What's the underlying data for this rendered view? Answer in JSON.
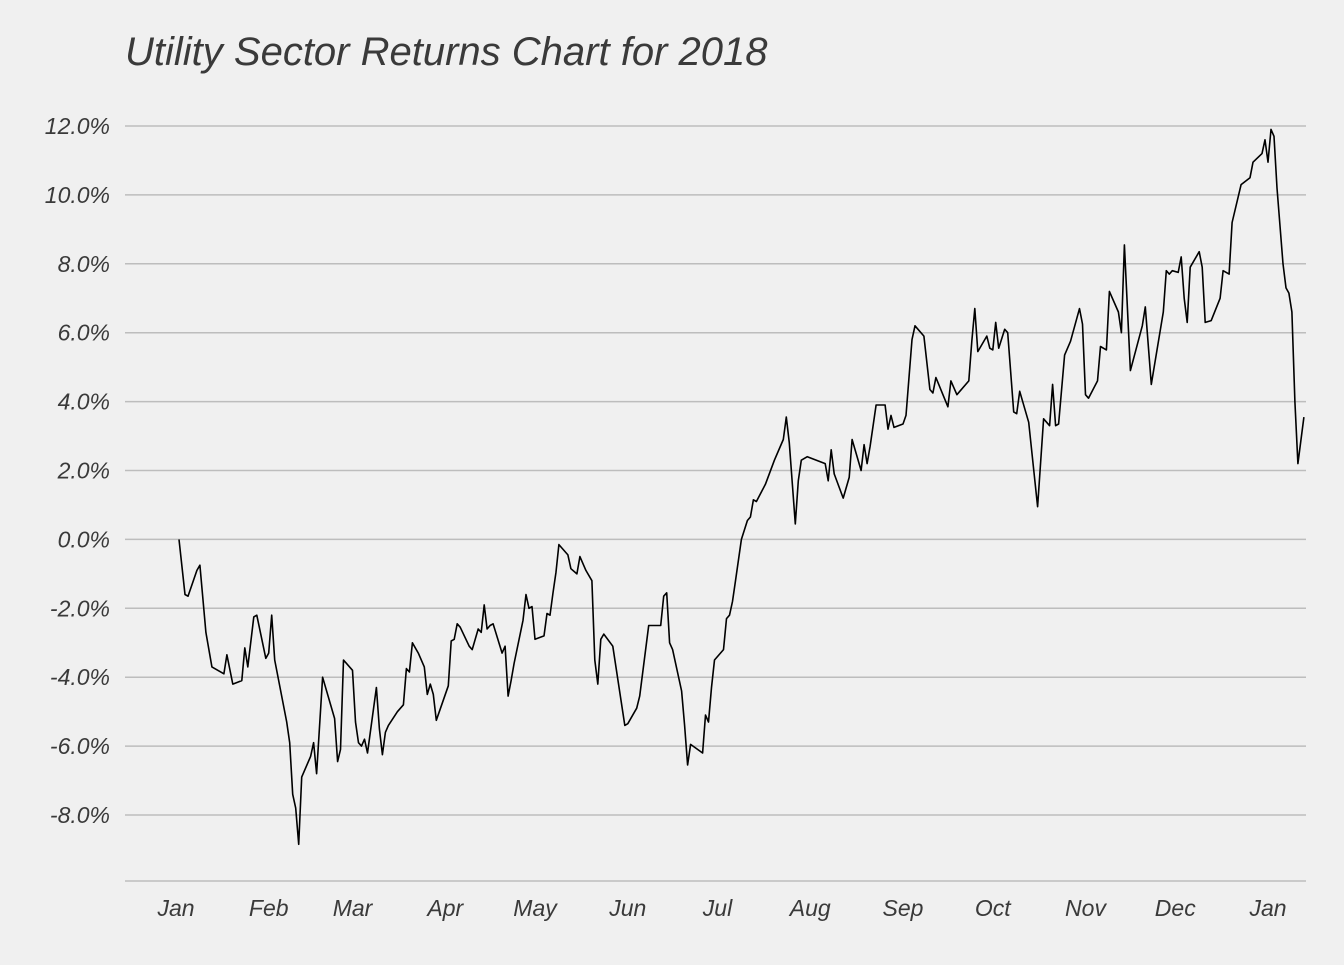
{
  "chart_data": {
    "type": "line",
    "title": "Utility Sector Returns Chart for 2018",
    "xlabel": "",
    "ylabel": "",
    "ylim": [
      -10.0,
      12.5
    ],
    "yticks": [
      -8.0,
      -6.0,
      -4.0,
      -2.0,
      0.0,
      2.0,
      4.0,
      6.0,
      8.0,
      10.0,
      12.0
    ],
    "ytick_labels": [
      "-8.0%",
      "-6.0%",
      "-4.0%",
      "-2.0%",
      "0.0%",
      "2.0%",
      "4.0%",
      "6.0%",
      "8.0%",
      "10.0%",
      "12.0%"
    ],
    "xlim": [
      "2017-12-23",
      "2019-01-09"
    ],
    "xticks": [
      "2018-01-01",
      "2018-02-01",
      "2018-03-01",
      "2018-04-01",
      "2018-05-01",
      "2018-06-01",
      "2018-07-01",
      "2018-08-01",
      "2018-09-01",
      "2018-10-01",
      "2018-11-01",
      "2018-12-01",
      "2019-01-01"
    ],
    "xtick_labels": [
      "Jan",
      "Feb",
      "Mar",
      "Apr",
      "May",
      "Jun",
      "Jul",
      "Aug",
      "Sep",
      "Oct",
      "Nov",
      "Dec",
      "Jan"
    ],
    "grid": "horizontal",
    "line_color": "#000000",
    "grid_color": "#bdbdbd",
    "series": [
      {
        "points": [
          [
            "2018-01-02",
            0.0
          ],
          [
            "2018-01-04",
            -1.6
          ],
          [
            "2018-01-05",
            -1.65
          ],
          [
            "2018-01-08",
            -0.9
          ],
          [
            "2018-01-09",
            -0.75
          ],
          [
            "2018-01-11",
            -2.7
          ],
          [
            "2018-01-13",
            -3.7
          ],
          [
            "2018-01-17",
            -3.9
          ],
          [
            "2018-01-18",
            -3.35
          ],
          [
            "2018-01-20",
            -4.2
          ],
          [
            "2018-01-23",
            -4.1
          ],
          [
            "2018-01-24",
            -3.15
          ],
          [
            "2018-01-25",
            -3.7
          ],
          [
            "2018-01-27",
            -2.25
          ],
          [
            "2018-01-28",
            -2.2
          ],
          [
            "2018-01-31",
            -3.45
          ],
          [
            "2018-02-01",
            -3.3
          ],
          [
            "2018-02-02",
            -2.2
          ],
          [
            "2018-02-03",
            -3.5
          ],
          [
            "2018-02-07",
            -5.3
          ],
          [
            "2018-02-08",
            -5.9
          ],
          [
            "2018-02-09",
            -7.4
          ],
          [
            "2018-02-10",
            -7.8
          ],
          [
            "2018-02-11",
            -8.85
          ],
          [
            "2018-02-12",
            -6.9
          ],
          [
            "2018-02-15",
            -6.3
          ],
          [
            "2018-02-16",
            -5.9
          ],
          [
            "2018-02-17",
            -6.8
          ],
          [
            "2018-02-19",
            -4.0
          ],
          [
            "2018-02-23",
            -5.2
          ],
          [
            "2018-02-24",
            -6.45
          ],
          [
            "2018-02-25",
            -6.1
          ],
          [
            "2018-02-26",
            -3.5
          ],
          [
            "2018-03-01",
            -3.8
          ],
          [
            "2018-03-02",
            -5.3
          ],
          [
            "2018-03-03",
            -5.9
          ],
          [
            "2018-03-04",
            -6.0
          ],
          [
            "2018-03-05",
            -5.8
          ],
          [
            "2018-03-06",
            -6.2
          ],
          [
            "2018-03-09",
            -4.3
          ],
          [
            "2018-03-10",
            -5.5
          ],
          [
            "2018-03-11",
            -6.25
          ],
          [
            "2018-03-12",
            -5.6
          ],
          [
            "2018-03-13",
            -5.4
          ],
          [
            "2018-03-16",
            -5.0
          ],
          [
            "2018-03-18",
            -4.8
          ],
          [
            "2018-03-19",
            -3.75
          ],
          [
            "2018-03-20",
            -3.85
          ],
          [
            "2018-03-21",
            -3.0
          ],
          [
            "2018-03-23",
            -3.3
          ],
          [
            "2018-03-25",
            -3.7
          ],
          [
            "2018-03-26",
            -4.5
          ],
          [
            "2018-03-27",
            -4.2
          ],
          [
            "2018-03-28",
            -4.5
          ],
          [
            "2018-03-29",
            -5.25
          ],
          [
            "2018-03-30",
            -5.0
          ],
          [
            "2018-04-02",
            -4.25
          ],
          [
            "2018-04-03",
            -2.95
          ],
          [
            "2018-04-04",
            -2.9
          ],
          [
            "2018-04-05",
            -2.45
          ],
          [
            "2018-04-06",
            -2.55
          ],
          [
            "2018-04-09",
            -3.1
          ],
          [
            "2018-04-10",
            -3.2
          ],
          [
            "2018-04-12",
            -2.6
          ],
          [
            "2018-04-13",
            -2.7
          ],
          [
            "2018-04-14",
            -1.9
          ],
          [
            "2018-04-15",
            -2.6
          ],
          [
            "2018-04-16",
            -2.5
          ],
          [
            "2018-04-17",
            -2.45
          ],
          [
            "2018-04-20",
            -3.3
          ],
          [
            "2018-04-21",
            -3.1
          ],
          [
            "2018-04-22",
            -4.55
          ],
          [
            "2018-04-23",
            -4.1
          ],
          [
            "2018-04-24",
            -3.6
          ],
          [
            "2018-04-27",
            -2.35
          ],
          [
            "2018-04-28",
            -1.6
          ],
          [
            "2018-04-29",
            -2.0
          ],
          [
            "2018-04-30",
            -1.95
          ],
          [
            "2018-05-01",
            -2.9
          ],
          [
            "2018-05-04",
            -2.8
          ],
          [
            "2018-05-05",
            -2.15
          ],
          [
            "2018-05-06",
            -2.2
          ],
          [
            "2018-05-07",
            -1.55
          ],
          [
            "2018-05-08",
            -0.95
          ],
          [
            "2018-05-09",
            -0.15
          ],
          [
            "2018-05-12",
            -0.45
          ],
          [
            "2018-05-13",
            -0.85
          ],
          [
            "2018-05-15",
            -1.0
          ],
          [
            "2018-05-16",
            -0.5
          ],
          [
            "2018-05-18",
            -0.9
          ],
          [
            "2018-05-20",
            -1.2
          ],
          [
            "2018-05-21",
            -3.5
          ],
          [
            "2018-05-22",
            -4.2
          ],
          [
            "2018-05-23",
            -2.9
          ],
          [
            "2018-05-24",
            -2.75
          ],
          [
            "2018-05-27",
            -3.1
          ],
          [
            "2018-05-31",
            -5.4
          ],
          [
            "2018-06-01",
            -5.35
          ],
          [
            "2018-06-04",
            -4.9
          ],
          [
            "2018-06-05",
            -4.55
          ],
          [
            "2018-06-08",
            -2.5
          ],
          [
            "2018-06-12",
            -2.5
          ],
          [
            "2018-06-13",
            -1.65
          ],
          [
            "2018-06-14",
            -1.55
          ],
          [
            "2018-06-15",
            -3.0
          ],
          [
            "2018-06-16",
            -3.2
          ],
          [
            "2018-06-19",
            -4.4
          ],
          [
            "2018-06-20",
            -5.4
          ],
          [
            "2018-06-21",
            -6.55
          ],
          [
            "2018-06-22",
            -5.95
          ],
          [
            "2018-06-26",
            -6.2
          ],
          [
            "2018-06-27",
            -5.1
          ],
          [
            "2018-06-28",
            -5.3
          ],
          [
            "2018-06-29",
            -4.3
          ],
          [
            "2018-06-30",
            -3.5
          ],
          [
            "2018-07-03",
            -3.2
          ],
          [
            "2018-07-04",
            -2.3
          ],
          [
            "2018-07-05",
            -2.2
          ],
          [
            "2018-07-06",
            -1.8
          ],
          [
            "2018-07-07",
            -1.2
          ],
          [
            "2018-07-09",
            0.0
          ],
          [
            "2018-07-11",
            0.55
          ],
          [
            "2018-07-12",
            0.65
          ],
          [
            "2018-07-13",
            1.15
          ],
          [
            "2018-07-14",
            1.1
          ],
          [
            "2018-07-17",
            1.6
          ],
          [
            "2018-07-20",
            2.3
          ],
          [
            "2018-07-23",
            2.9
          ],
          [
            "2018-07-24",
            3.55
          ],
          [
            "2018-07-25",
            2.8
          ],
          [
            "2018-07-27",
            0.45
          ],
          [
            "2018-07-28",
            1.7
          ],
          [
            "2018-07-29",
            2.3
          ],
          [
            "2018-07-31",
            2.4
          ],
          [
            "2018-08-06",
            2.2
          ],
          [
            "2018-08-07",
            1.7
          ],
          [
            "2018-08-08",
            2.6
          ],
          [
            "2018-08-09",
            1.9
          ],
          [
            "2018-08-12",
            1.2
          ],
          [
            "2018-08-14",
            1.8
          ],
          [
            "2018-08-15",
            2.9
          ],
          [
            "2018-08-18",
            2.0
          ],
          [
            "2018-08-19",
            2.75
          ],
          [
            "2018-08-20",
            2.2
          ],
          [
            "2018-08-21",
            2.7
          ],
          [
            "2018-08-23",
            3.9
          ],
          [
            "2018-08-26",
            3.9
          ],
          [
            "2018-08-27",
            3.2
          ],
          [
            "2018-08-28",
            3.6
          ],
          [
            "2018-08-29",
            3.25
          ],
          [
            "2018-09-01",
            3.35
          ],
          [
            "2018-09-02",
            3.6
          ],
          [
            "2018-09-04",
            5.8
          ],
          [
            "2018-09-05",
            6.2
          ],
          [
            "2018-09-08",
            5.9
          ],
          [
            "2018-09-10",
            4.35
          ],
          [
            "2018-09-11",
            4.25
          ],
          [
            "2018-09-12",
            4.7
          ],
          [
            "2018-09-16",
            3.85
          ],
          [
            "2018-09-17",
            4.6
          ],
          [
            "2018-09-19",
            4.2
          ],
          [
            "2018-09-23",
            4.6
          ],
          [
            "2018-09-24",
            5.75
          ],
          [
            "2018-09-25",
            6.7
          ],
          [
            "2018-09-26",
            5.45
          ],
          [
            "2018-09-29",
            5.9
          ],
          [
            "2018-09-30",
            5.55
          ],
          [
            "2018-10-01",
            5.5
          ],
          [
            "2018-10-02",
            6.3
          ],
          [
            "2018-10-03",
            5.55
          ],
          [
            "2018-10-05",
            6.1
          ],
          [
            "2018-10-06",
            6.0
          ],
          [
            "2018-10-08",
            3.7
          ],
          [
            "2018-10-09",
            3.65
          ],
          [
            "2018-10-10",
            4.3
          ],
          [
            "2018-10-13",
            3.4
          ],
          [
            "2018-10-16",
            0.95
          ],
          [
            "2018-10-18",
            3.5
          ],
          [
            "2018-10-20",
            3.3
          ],
          [
            "2018-10-21",
            4.5
          ],
          [
            "2018-10-22",
            3.3
          ],
          [
            "2018-10-23",
            3.35
          ],
          [
            "2018-10-25",
            5.35
          ],
          [
            "2018-10-27",
            5.75
          ],
          [
            "2018-10-30",
            6.7
          ],
          [
            "2018-10-31",
            6.25
          ],
          [
            "2018-11-01",
            4.2
          ],
          [
            "2018-11-02",
            4.1
          ],
          [
            "2018-11-05",
            4.6
          ],
          [
            "2018-11-06",
            5.6
          ],
          [
            "2018-11-08",
            5.5
          ],
          [
            "2018-11-09",
            7.2
          ],
          [
            "2018-11-12",
            6.6
          ],
          [
            "2018-11-13",
            6.0
          ],
          [
            "2018-11-14",
            8.55
          ],
          [
            "2018-11-16",
            4.9
          ],
          [
            "2018-11-20",
            6.2
          ],
          [
            "2018-11-21",
            6.75
          ],
          [
            "2018-11-23",
            4.5
          ],
          [
            "2018-11-27",
            6.6
          ],
          [
            "2018-11-28",
            7.8
          ],
          [
            "2018-11-29",
            7.7
          ],
          [
            "2018-11-30",
            7.8
          ],
          [
            "2018-12-02",
            7.75
          ],
          [
            "2018-12-03",
            8.2
          ],
          [
            "2018-12-04",
            7.0
          ],
          [
            "2018-12-05",
            6.3
          ],
          [
            "2018-12-06",
            7.9
          ],
          [
            "2018-12-09",
            8.35
          ],
          [
            "2018-12-10",
            7.9
          ],
          [
            "2018-12-11",
            6.3
          ],
          [
            "2018-12-13",
            6.35
          ],
          [
            "2018-12-16",
            7.0
          ],
          [
            "2018-12-17",
            7.8
          ],
          [
            "2018-12-19",
            7.7
          ],
          [
            "2018-12-20",
            9.2
          ],
          [
            "2018-12-23",
            10.3
          ],
          [
            "2018-12-26",
            10.5
          ],
          [
            "2018-12-27",
            10.95
          ],
          [
            "2018-12-30",
            11.2
          ],
          [
            "2018-12-31",
            11.6
          ],
          [
            "2019-01-01",
            10.95
          ],
          [
            "2019-01-02",
            11.9
          ],
          [
            "2019-01-03",
            11.7
          ],
          [
            "2019-01-04",
            10.2
          ],
          [
            "2019-01-06",
            8.0
          ],
          [
            "2019-01-07",
            7.3
          ],
          [
            "2019-01-08",
            7.15
          ],
          [
            "2019-01-09",
            6.6
          ],
          [
            "2019-01-10",
            4.0
          ],
          [
            "2019-01-11",
            2.2
          ],
          [
            "2019-01-13",
            3.55
          ]
        ]
      }
    ]
  }
}
